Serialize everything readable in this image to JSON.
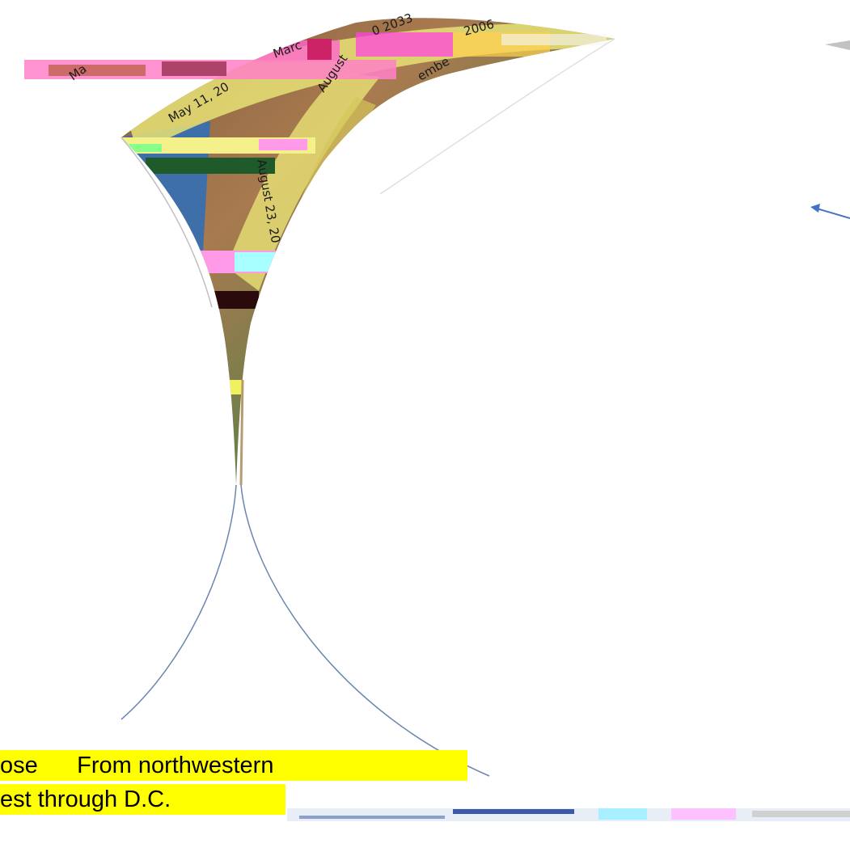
{
  "map_labels": {
    "label_may": "May 11, 20",
    "label_aug": "August 23, 20",
    "label_2033": "0 2033",
    "label_2008": "2006",
    "label_ugust": "August",
    "label_marc": "Marc",
    "label_embe": "embe",
    "label_ma": "Ma"
  },
  "caption": {
    "line1": "ose      From northwestern",
    "line2": "est through D.C."
  },
  "colors": {
    "caption_highlight": "#ffff00",
    "arrow": "#4472c4",
    "path_band": "#e6e46b"
  }
}
